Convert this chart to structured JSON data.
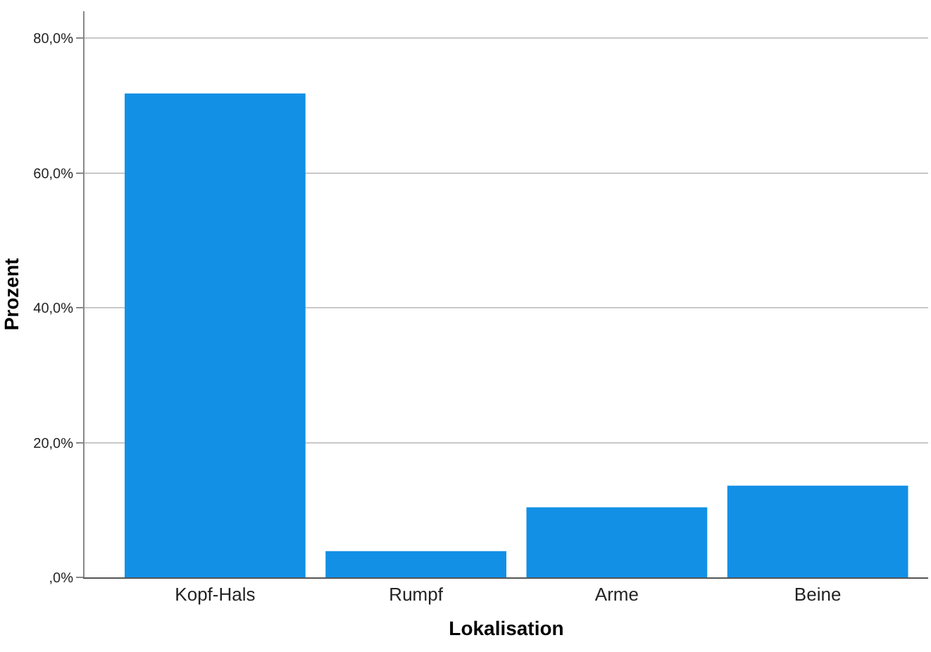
{
  "chart_data": {
    "type": "bar",
    "xlabel": "Lokalisation",
    "ylabel": "Prozent",
    "categories": [
      "Kopf-Hals",
      "Rumpf",
      "Arme",
      "Beine"
    ],
    "values": [
      71.8,
      3.9,
      10.4,
      13.6
    ],
    "color": "#1290e6",
    "ylim": [
      0,
      84
    ],
    "yticks": [
      {
        "value": 0,
        "label": ",0%"
      },
      {
        "value": 20,
        "label": "20,0%"
      },
      {
        "value": 40,
        "label": "40,0%"
      },
      {
        "value": 60,
        "label": "60,0%"
      },
      {
        "value": 80,
        "label": "80,0%"
      }
    ],
    "grid": "y"
  }
}
